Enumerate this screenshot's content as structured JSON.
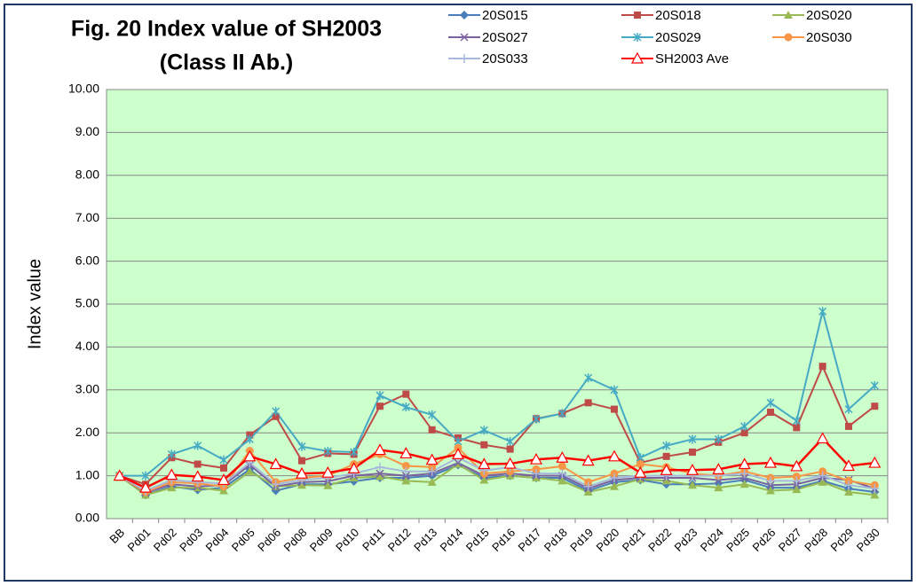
{
  "chart_data": {
    "type": "line",
    "title": "Fig. 20 Index value of SH2003",
    "subtitle": "(Class II Ab.)",
    "y_label": "Index value",
    "categories": [
      "BB",
      "Pd01",
      "Pd02",
      "Pd03",
      "Pd04",
      "Pd05",
      "Pd06",
      "Pd08",
      "Pd09",
      "Pd10",
      "Pd11",
      "Pd12",
      "Pd13",
      "Pd14",
      "Pd15",
      "Pd16",
      "Pd17",
      "Pd18",
      "Pd19",
      "Pd20",
      "Pd21",
      "Pd22",
      "Pd23",
      "Pd24",
      "Pd25",
      "Pd26",
      "Pd27",
      "Pd28",
      "Pd29",
      "Pd30"
    ],
    "series": [
      {
        "name": "20S015",
        "color": "#4a7ebb",
        "marker": "diamond",
        "values": [
          1.0,
          0.55,
          0.75,
          0.67,
          0.72,
          1.15,
          0.65,
          0.8,
          0.8,
          0.87,
          0.95,
          0.95,
          1.0,
          1.25,
          0.95,
          1.0,
          0.95,
          0.95,
          0.65,
          0.85,
          0.9,
          0.8,
          0.8,
          0.82,
          0.9,
          0.72,
          0.72,
          0.88,
          0.7,
          0.62
        ]
      },
      {
        "name": "20S018",
        "color": "#be4b48",
        "marker": "square",
        "values": [
          1.0,
          0.8,
          1.42,
          1.27,
          1.18,
          1.95,
          2.38,
          1.35,
          1.52,
          1.5,
          2.62,
          2.9,
          2.07,
          1.88,
          1.72,
          1.62,
          2.33,
          2.45,
          2.7,
          2.55,
          1.3,
          1.45,
          1.55,
          1.78,
          2.0,
          2.48,
          2.12,
          3.55,
          2.15,
          2.62
        ]
      },
      {
        "name": "20S020",
        "color": "#98b954",
        "marker": "triangle",
        "values": [
          1.0,
          0.55,
          0.72,
          0.72,
          0.65,
          1.1,
          0.75,
          0.78,
          0.77,
          0.95,
          0.98,
          0.88,
          0.85,
          1.27,
          0.9,
          1.0,
          0.95,
          0.88,
          0.62,
          0.75,
          0.92,
          0.88,
          0.78,
          0.72,
          0.8,
          0.65,
          0.68,
          0.85,
          0.62,
          0.55
        ]
      },
      {
        "name": "20S027",
        "color": "#7d60a0",
        "marker": "x",
        "values": [
          1.0,
          0.6,
          0.8,
          0.75,
          0.78,
          1.25,
          0.75,
          0.85,
          0.87,
          1.0,
          1.05,
          1.0,
          1.05,
          1.3,
          1.0,
          1.05,
          1.0,
          1.0,
          0.7,
          0.9,
          0.95,
          0.95,
          0.95,
          0.9,
          0.95,
          0.78,
          0.8,
          0.95,
          0.9,
          0.7
        ]
      },
      {
        "name": "20S029",
        "color": "#46aac5",
        "marker": "star",
        "values": [
          1.0,
          1.0,
          1.5,
          1.7,
          1.37,
          1.85,
          2.5,
          1.68,
          1.57,
          1.55,
          2.87,
          2.6,
          2.42,
          1.8,
          2.06,
          1.8,
          2.32,
          2.45,
          3.28,
          3.0,
          1.42,
          1.7,
          1.85,
          1.85,
          2.15,
          2.7,
          2.28,
          4.83,
          2.55,
          3.1
        ]
      },
      {
        "name": "20S030",
        "color": "#f79646",
        "marker": "circle",
        "values": [
          1.0,
          0.62,
          0.85,
          0.82,
          0.75,
          1.58,
          0.85,
          0.95,
          1.0,
          1.27,
          1.5,
          1.23,
          1.2,
          1.65,
          1.05,
          1.1,
          1.15,
          1.22,
          0.85,
          1.05,
          1.27,
          1.2,
          1.05,
          1.0,
          1.1,
          0.95,
          0.98,
          1.1,
          0.88,
          0.78
        ]
      },
      {
        "name": "20S033",
        "color": "#a9b9dc",
        "marker": "plus",
        "values": [
          1.0,
          0.65,
          0.9,
          0.85,
          0.82,
          1.3,
          0.8,
          0.9,
          0.95,
          1.05,
          1.2,
          1.1,
          1.1,
          1.42,
          1.12,
          1.2,
          1.05,
          1.05,
          0.75,
          0.95,
          1.0,
          1.0,
          1.0,
          1.0,
          1.05,
          0.88,
          0.88,
          1.0,
          0.78,
          0.7
        ]
      },
      {
        "name": "SH2003 Ave",
        "color": "#ff0000",
        "marker": "open-triangle",
        "values": [
          1.0,
          0.72,
          1.02,
          0.98,
          0.9,
          1.45,
          1.27,
          1.05,
          1.07,
          1.17,
          1.6,
          1.52,
          1.37,
          1.5,
          1.27,
          1.28,
          1.38,
          1.42,
          1.35,
          1.45,
          1.07,
          1.13,
          1.13,
          1.15,
          1.27,
          1.3,
          1.22,
          1.87,
          1.23,
          1.3
        ]
      }
    ],
    "ylim": [
      0,
      10
    ],
    "yticks": [
      {
        "value": 0,
        "label": "0.00"
      },
      {
        "value": 1,
        "label": "1.00"
      },
      {
        "value": 2,
        "label": "2.00"
      },
      {
        "value": 3,
        "label": "3.00"
      },
      {
        "value": 4,
        "label": "4.00"
      },
      {
        "value": 5,
        "label": "5.00"
      },
      {
        "value": 6,
        "label": "6.00"
      },
      {
        "value": 7,
        "label": "7.00"
      },
      {
        "value": 8,
        "label": "8.00"
      },
      {
        "value": 9,
        "label": "9.00"
      },
      {
        "value": 10,
        "label": "10.00"
      }
    ],
    "grid": true,
    "legend": "top-right",
    "plot_background": "#ccffcc"
  }
}
